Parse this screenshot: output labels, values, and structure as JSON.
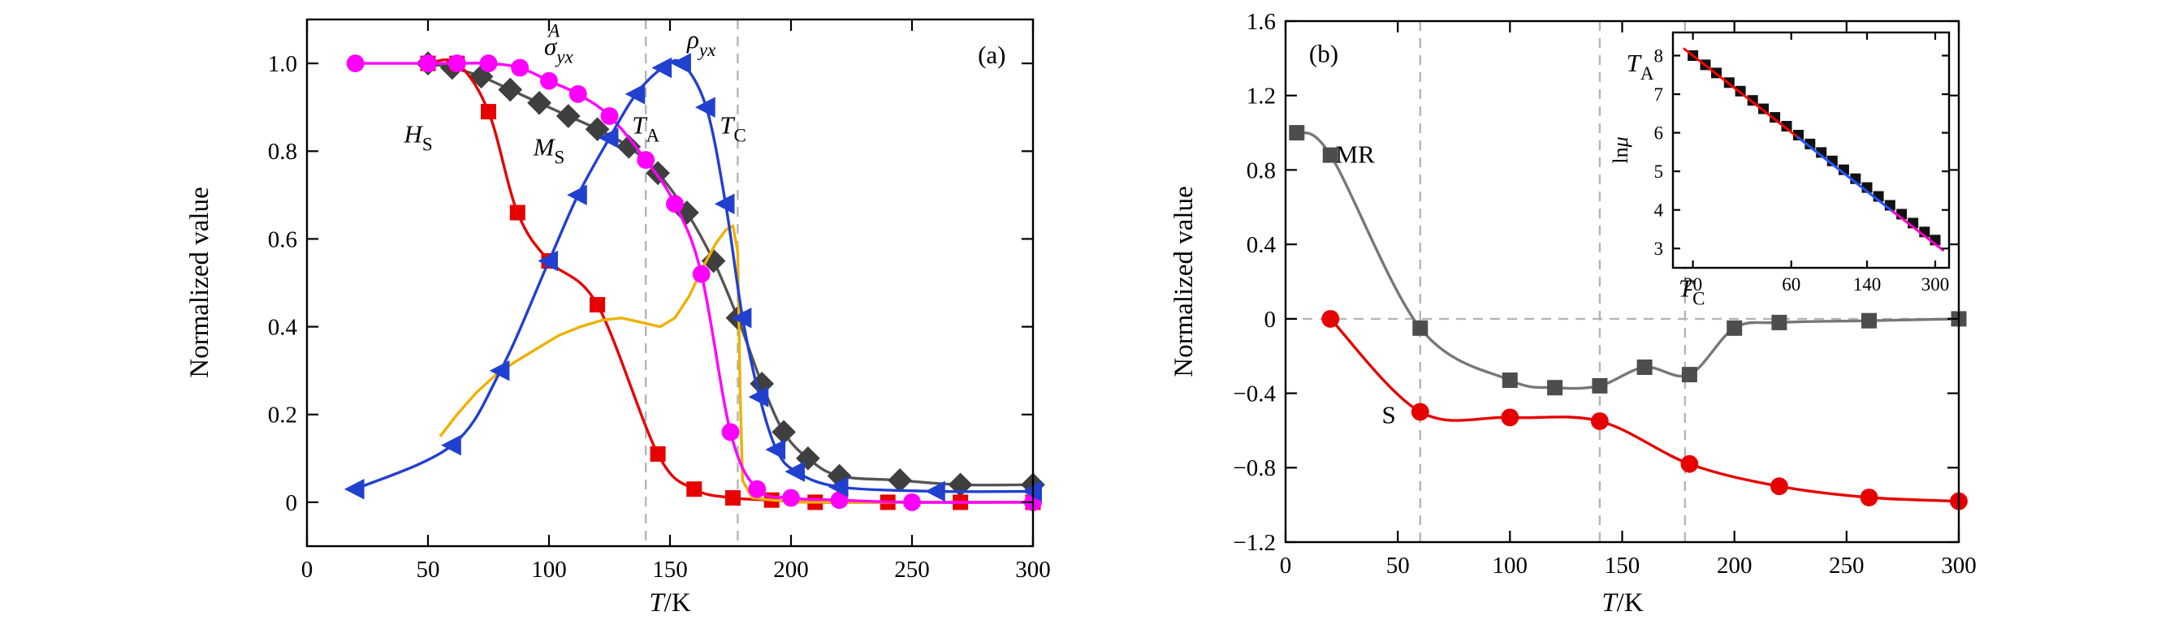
{
  "figure": {
    "bg": "#ffffff",
    "panel_a_label": "(a)",
    "panel_b_label": "(b)"
  },
  "chart_data": [
    {
      "id": "panel-a",
      "type": "line",
      "panel_label": "(a)",
      "xlabel": {
        "var": "T",
        "rest": "/K"
      },
      "ylabel": "Normalized value",
      "xlim": [
        0,
        300
      ],
      "ylim": [
        -0.1,
        1.1
      ],
      "grid": false,
      "legend": "none (in-plot colored labels)",
      "xticks": [
        {
          "v": 0,
          "label": "0"
        },
        {
          "v": 50,
          "label": "50"
        },
        {
          "v": 100,
          "label": "100"
        },
        {
          "v": 150,
          "label": "150"
        },
        {
          "v": 200,
          "label": "200"
        },
        {
          "v": 250,
          "label": "250"
        },
        {
          "v": 300,
          "label": "300"
        }
      ],
      "yticks": [
        {
          "v": 0,
          "label": "0"
        },
        {
          "v": 0.2,
          "label": "0.2"
        },
        {
          "v": 0.4,
          "label": "0.4"
        },
        {
          "v": 0.6,
          "label": "0.6"
        },
        {
          "v": 0.8,
          "label": "0.8"
        },
        {
          "v": 1.0,
          "label": "1.0"
        }
      ],
      "guide_color": "#b5b5b5",
      "vlines": [
        {
          "x": 140,
          "name": "TA"
        },
        {
          "x": 178,
          "name": "TC"
        }
      ],
      "annotations": [
        {
          "name": "sigma-yx-A-label",
          "base": "σ",
          "sub": "yx",
          "sup": "A",
          "sub_italic": true,
          "x": 104,
          "y": 1.02,
          "color": "#ff00ff",
          "anchor": "middle"
        },
        {
          "name": "rho-yx-label",
          "base": "ρ",
          "sub": "yx",
          "sub_italic": true,
          "x": 163,
          "y": 1.035,
          "color": "#2040d0",
          "anchor": "middle"
        },
        {
          "name": "Hs-label",
          "base": "H",
          "sub": "S",
          "x": 46,
          "y": 0.82,
          "color": "#e60000",
          "anchor": "middle"
        },
        {
          "name": "Ms-label",
          "base": "M",
          "sub": "S",
          "x": 100,
          "y": 0.79,
          "color": "#3f3f3f",
          "anchor": "middle"
        },
        {
          "name": "Ta-label",
          "base": "T",
          "sub": "A",
          "x": 140,
          "y": 0.84,
          "color": "#1a1a1a",
          "anchor": "middle"
        },
        {
          "name": "Tc-label",
          "base": "T",
          "sub": "C",
          "x": 176,
          "y": 0.84,
          "color": "#1a1a1a",
          "anchor": "middle"
        },
        {
          "name": "panel-a-label",
          "base": "(a)",
          "italic": false,
          "x": 283,
          "y": 1.0,
          "color": "#000000",
          "anchor": "middle"
        }
      ],
      "series": [
        {
          "name": "M_S",
          "color": "#3f3f3f",
          "line_color": "#555555",
          "marker": "diamond",
          "marker_size": 21,
          "smooth": true,
          "points": [
            [
              50,
              1.0
            ],
            [
              60,
              0.99
            ],
            [
              72,
              0.97
            ],
            [
              84,
              0.94
            ],
            [
              96,
              0.91
            ],
            [
              108,
              0.88
            ],
            [
              120,
              0.85
            ],
            [
              133,
              0.81
            ],
            [
              145,
              0.75
            ],
            [
              157,
              0.66
            ],
            [
              168,
              0.55
            ],
            [
              178,
              0.42
            ],
            [
              188,
              0.27
            ],
            [
              197,
              0.16
            ],
            [
              207,
              0.1
            ],
            [
              220,
              0.06
            ],
            [
              245,
              0.05
            ],
            [
              270,
              0.04
            ],
            [
              300,
              0.04
            ]
          ]
        },
        {
          "name": "H_S",
          "color": "#e60000",
          "marker": "square",
          "marker_size": 19,
          "smooth": true,
          "points": [
            [
              50,
              1.0
            ],
            [
              62,
              1.0
            ],
            [
              75,
              0.89
            ],
            [
              87,
              0.66
            ],
            [
              100,
              0.55
            ],
            [
              120,
              0.45
            ],
            [
              145,
              0.11
            ],
            [
              160,
              0.03
            ],
            [
              176,
              0.01
            ],
            [
              192,
              0.005
            ],
            [
              210,
              0.0
            ],
            [
              240,
              0.0
            ],
            [
              270,
              0.0
            ],
            [
              300,
              0.0
            ]
          ]
        },
        {
          "name": "orange_curve",
          "color": "#efb000",
          "marker": null,
          "smooth": false,
          "points": [
            [
              55,
              0.15
            ],
            [
              62,
              0.2
            ],
            [
              70,
              0.25
            ],
            [
              78,
              0.29
            ],
            [
              86,
              0.32
            ],
            [
              95,
              0.35
            ],
            [
              104,
              0.38
            ],
            [
              113,
              0.4
            ],
            [
              122,
              0.415
            ],
            [
              130,
              0.42
            ],
            [
              138,
              0.41
            ],
            [
              146,
              0.4
            ],
            [
              152,
              0.42
            ],
            [
              158,
              0.47
            ],
            [
              164,
              0.54
            ],
            [
              169,
              0.59
            ],
            [
              173,
              0.62
            ],
            [
              176,
              0.63
            ],
            [
              178,
              0.57
            ],
            [
              179,
              0.25
            ],
            [
              180,
              0.05
            ],
            [
              184,
              0.01
            ],
            [
              192,
              0.005
            ],
            [
              205,
              0.0
            ],
            [
              230,
              0.0
            ],
            [
              265,
              0.0
            ],
            [
              300,
              0.0
            ]
          ]
        },
        {
          "name": "sigma_yx_A",
          "color": "#ff00ff",
          "marker": "circle",
          "marker_size": 21,
          "smooth": true,
          "points": [
            [
              20,
              1.0
            ],
            [
              50,
              1.0
            ],
            [
              62,
              1.0
            ],
            [
              75,
              1.0
            ],
            [
              88,
              0.99
            ],
            [
              100,
              0.96
            ],
            [
              112,
              0.93
            ],
            [
              125,
              0.88
            ],
            [
              140,
              0.78
            ],
            [
              152,
              0.68
            ],
            [
              163,
              0.52
            ],
            [
              175,
              0.16
            ],
            [
              186,
              0.03
            ],
            [
              200,
              0.01
            ],
            [
              220,
              0.005
            ],
            [
              250,
              0.0
            ],
            [
              300,
              0.0
            ]
          ]
        },
        {
          "name": "rho_yx",
          "color": "#2040d0",
          "marker": "triangle-left",
          "marker_size": 22,
          "smooth": true,
          "points": [
            [
              20,
              0.03
            ],
            [
              60,
              0.13
            ],
            [
              80,
              0.3
            ],
            [
              100,
              0.55
            ],
            [
              112,
              0.7
            ],
            [
              125,
              0.83
            ],
            [
              136,
              0.93
            ],
            [
              147,
              0.99
            ],
            [
              155,
              1.0
            ],
            [
              165,
              0.9
            ],
            [
              173,
              0.68
            ],
            [
              180,
              0.42
            ],
            [
              187,
              0.24
            ],
            [
              194,
              0.12
            ],
            [
              202,
              0.07
            ],
            [
              220,
              0.035
            ],
            [
              260,
              0.025
            ],
            [
              300,
              0.025
            ]
          ]
        }
      ]
    },
    {
      "id": "panel-b",
      "type": "line",
      "panel_label": "(b)",
      "xlabel": {
        "var": "T",
        "rest": "/K"
      },
      "ylabel": "Normalized value",
      "xlim": [
        0,
        300
      ],
      "ylim": [
        -1.2,
        1.6
      ],
      "grid": false,
      "xticks": [
        {
          "v": 0,
          "label": "0"
        },
        {
          "v": 50,
          "label": "50"
        },
        {
          "v": 100,
          "label": "100"
        },
        {
          "v": 150,
          "label": "150"
        },
        {
          "v": 200,
          "label": "200"
        },
        {
          "v": 250,
          "label": "250"
        },
        {
          "v": 300,
          "label": "300"
        }
      ],
      "yticks": [
        {
          "v": -1.2,
          "label": "−1.2"
        },
        {
          "v": -0.8,
          "label": "−0.8"
        },
        {
          "v": -0.4,
          "label": "−0.4"
        },
        {
          "v": 0,
          "label": "0"
        },
        {
          "v": 0.4,
          "label": "0.4"
        },
        {
          "v": 0.8,
          "label": "0.8"
        },
        {
          "v": 1.2,
          "label": "1.2"
        },
        {
          "v": 1.6,
          "label": "1.6"
        }
      ],
      "guide_color": "#b5b5b5",
      "vlines": [
        {
          "x": 60,
          "name": "60K"
        },
        {
          "x": 140,
          "name": "TA"
        },
        {
          "x": 178,
          "name": "TC"
        }
      ],
      "hlines": [
        {
          "y": 0,
          "name": "zero"
        }
      ],
      "annotations": [
        {
          "name": "mr-label",
          "base": "MR",
          "italic": false,
          "x": 31,
          "y": 0.84,
          "color": "#2b2b2b",
          "anchor": "middle"
        },
        {
          "name": "s-label",
          "base": "S",
          "italic": false,
          "x": 46,
          "y": -0.56,
          "color": "#e60000",
          "anchor": "middle"
        },
        {
          "name": "Ta-label",
          "base": "T",
          "sub": "A",
          "x": 158,
          "y": 1.33,
          "color": "#1a1a1a",
          "anchor": "middle"
        },
        {
          "name": "Tc-label",
          "base": "T",
          "sub": "C",
          "x": 181,
          "y": 0.12,
          "color": "#1a1a1a",
          "anchor": "middle"
        },
        {
          "name": "panel-b-label",
          "base": "(b)",
          "italic": false,
          "x": 17,
          "y": 1.38,
          "color": "#000000",
          "anchor": "middle"
        }
      ],
      "series": [
        {
          "name": "MR",
          "color": "#4d4d4d",
          "line_color": "#777777",
          "marker": "square",
          "marker_size": 19,
          "smooth": true,
          "points": [
            [
              5,
              1.0
            ],
            [
              20,
              0.88
            ],
            [
              60,
              -0.05
            ],
            [
              100,
              -0.33
            ],
            [
              120,
              -0.37
            ],
            [
              140,
              -0.36
            ],
            [
              160,
              -0.26
            ],
            [
              180,
              -0.3
            ],
            [
              200,
              -0.05
            ],
            [
              220,
              -0.02
            ],
            [
              260,
              -0.01
            ],
            [
              300,
              0.0
            ]
          ]
        },
        {
          "name": "S",
          "color": "#e60000",
          "marker": "circle",
          "marker_size": 21,
          "smooth": true,
          "points": [
            [
              20,
              0.0
            ],
            [
              60,
              -0.5
            ],
            [
              100,
              -0.53
            ],
            [
              140,
              -0.55
            ],
            [
              180,
              -0.78
            ],
            [
              220,
              -0.9
            ],
            [
              260,
              -0.96
            ],
            [
              300,
              -0.98
            ]
          ]
        }
      ]
    },
    {
      "id": "inset",
      "type": "scatter",
      "inset": true,
      "ylabel": {
        "prefix": "ln",
        "var": "μ"
      },
      "xscale": "log",
      "xlim": [
        16,
        350
      ],
      "ylim": [
        2.5,
        8.6
      ],
      "grid": false,
      "xticks": [
        {
          "v": 20,
          "label": "20"
        },
        {
          "v": 60,
          "label": "60"
        },
        {
          "v": 140,
          "label": "140"
        },
        {
          "v": 300,
          "label": "300"
        }
      ],
      "yticks": [
        {
          "v": 3,
          "label": "3"
        },
        {
          "v": 4,
          "label": "4"
        },
        {
          "v": 5,
          "label": "5"
        },
        {
          "v": 6,
          "label": "6"
        },
        {
          "v": 7,
          "label": "7"
        },
        {
          "v": 8,
          "label": "8"
        }
      ],
      "series": [
        {
          "name": "ln_mu",
          "color": "#111111",
          "marker": "square",
          "marker_size": 13,
          "line": false,
          "points": [
            [
              20,
              8.0
            ],
            [
              23,
              7.76
            ],
            [
              26,
              7.55
            ],
            [
              30,
              7.3
            ],
            [
              34,
              7.08
            ],
            [
              39,
              6.84
            ],
            [
              44,
              6.62
            ],
            [
              50,
              6.4
            ],
            [
              57,
              6.17
            ],
            [
              65,
              5.94
            ],
            [
              74,
              5.71
            ],
            [
              84,
              5.49
            ],
            [
              95,
              5.27
            ],
            [
              108,
              5.04
            ],
            [
              123,
              4.81
            ],
            [
              140,
              4.58
            ],
            [
              159,
              4.35
            ],
            [
              181,
              4.12
            ],
            [
              206,
              3.89
            ],
            [
              234,
              3.66
            ],
            [
              266,
              3.43
            ],
            [
              300,
              3.22
            ]
          ]
        },
        {
          "name": "fit_low_T",
          "color": "#ff0000",
          "marker": null,
          "smooth": false,
          "line_width": 3,
          "points": [
            [
              18,
              8.19
            ],
            [
              70,
              5.74
            ]
          ]
        },
        {
          "name": "fit_mid_T",
          "color": "#2255ff",
          "marker": null,
          "smooth": false,
          "line_width": 3,
          "points": [
            [
              64,
              5.9
            ],
            [
              195,
              3.88
            ]
          ]
        },
        {
          "name": "fit_high_T",
          "color": "#ff00cc",
          "marker": null,
          "smooth": false,
          "line_width": 3,
          "points": [
            [
              185,
              3.98
            ],
            [
              330,
              2.94
            ]
          ]
        }
      ]
    }
  ]
}
